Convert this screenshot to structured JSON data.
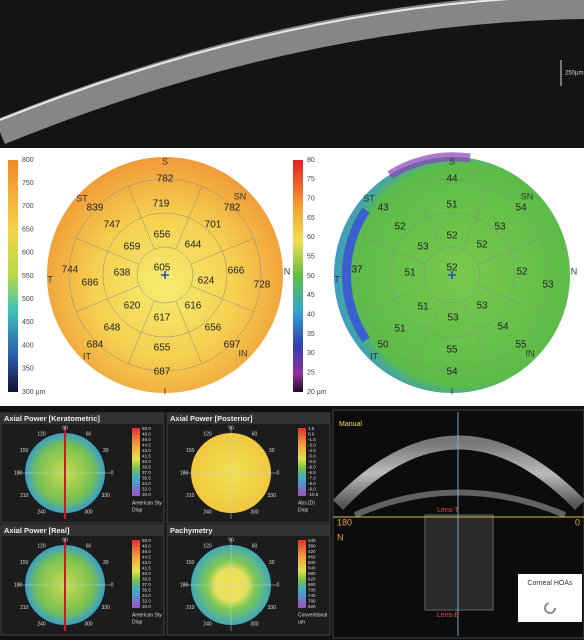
{
  "scan_image": {
    "scale_label": "250µm"
  },
  "thickness_map": {
    "scale": [
      800,
      750,
      700,
      650,
      600,
      550,
      500,
      450,
      400,
      350,
      "300 µm"
    ],
    "sectors": [
      "S",
      "T",
      "N",
      "I",
      "ST",
      "SN",
      "IT",
      "IN"
    ],
    "values": [
      782,
      839,
      782,
      719,
      747,
      701,
      656,
      644,
      659,
      744,
      638,
      605,
      624,
      666,
      728,
      686,
      620,
      616,
      617,
      648,
      656,
      655,
      684,
      697,
      687
    ]
  },
  "epithelium_map": {
    "scale": [
      80,
      75,
      70,
      65,
      60,
      55,
      50,
      45,
      40,
      35,
      30,
      25,
      "20 µm"
    ],
    "sectors": [
      "S",
      "T",
      "N",
      "I",
      "ST",
      "SN",
      "IT",
      "IN"
    ],
    "values": [
      44,
      43,
      54,
      51,
      52,
      53,
      52,
      52,
      53,
      37,
      51,
      52,
      52,
      53,
      51,
      53,
      53,
      51,
      54,
      55,
      50,
      55,
      54
    ]
  },
  "angles": [
    "90",
    "120",
    "60",
    "150",
    "30",
    "180",
    "0",
    "210",
    "330",
    "240",
    "300"
  ],
  "panels": [
    {
      "title": "Axial Power [Keratometric]",
      "scale": [
        "50.0",
        "48.0",
        "46.0",
        "44.5",
        "43.0",
        "41.5",
        "40.0",
        "38.5",
        "37.0",
        "35.5",
        "34.0",
        "32.0",
        "30.0"
      ],
      "unit": [
        "American Sty",
        "Diop"
      ]
    },
    {
      "title": "Axial Power [Posterior]",
      "scale": [
        "1.5",
        "0.0",
        "-1.5",
        "-3.0",
        "-4.5",
        "-5.0",
        "-5.5",
        "-6.0",
        "-6.5",
        "-7.0",
        "-8.0",
        "-9.0",
        "-10.5"
      ],
      "unit": [
        "Abs.(D)",
        "Diop"
      ]
    },
    {
      "title": "Axial Power [Real]",
      "scale": [
        "50.0",
        "48.0",
        "46.0",
        "44.5",
        "43.0",
        "41.5",
        "40.0",
        "38.5",
        "37.0",
        "35.5",
        "34.0",
        "32.0",
        "30.0"
      ],
      "unit": [
        "American Sty",
        "Diop"
      ]
    },
    {
      "title": "Pachymetry",
      "scale": [
        "340",
        "380",
        "420",
        "460",
        "500",
        "540",
        "580",
        "620",
        "660",
        "700",
        "740",
        "780",
        "820"
      ],
      "unit": [
        "Conventional",
        "um"
      ]
    }
  ],
  "oct_view": {
    "mode": "Manual",
    "left_angle": "180",
    "right_angle": "0",
    "side": "N",
    "lens_top": "Lens-T",
    "lens_bottom": "Lens-B",
    "button": "Corneal HOAs"
  }
}
